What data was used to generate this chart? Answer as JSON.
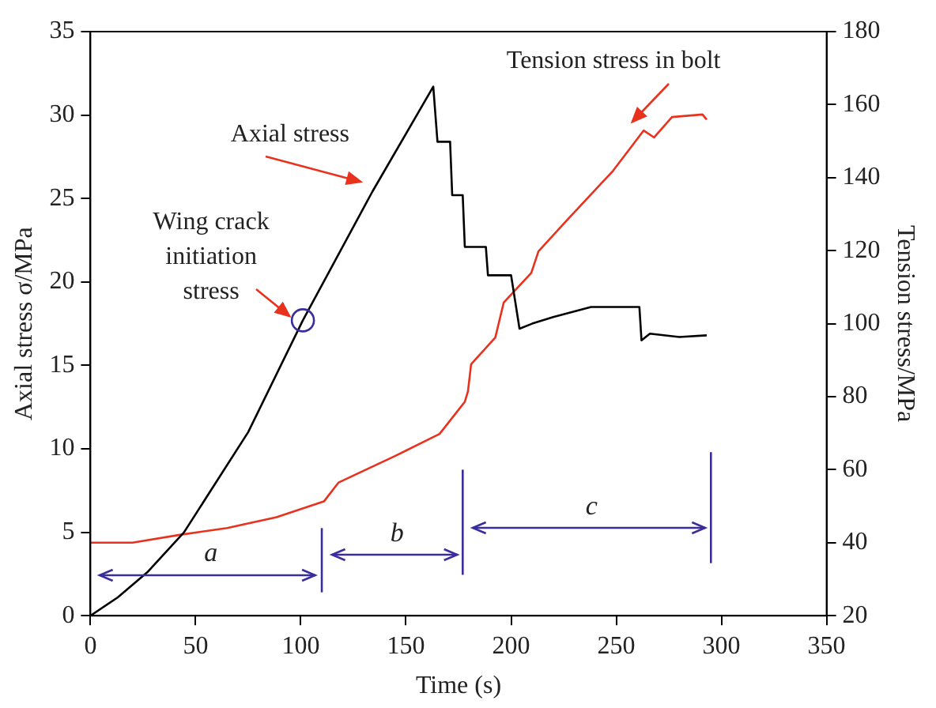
{
  "chart_data": {
    "type": "line",
    "xlabel": "Time (s)",
    "ylabel": "Axial stress σ/MPa",
    "y2label": "Tension stress/MPa",
    "xlim": [
      0,
      350
    ],
    "xticks": [
      0,
      50,
      100,
      150,
      200,
      250,
      300,
      350
    ],
    "ylim": [
      0,
      35
    ],
    "yticks": [
      0,
      5,
      10,
      15,
      20,
      25,
      30,
      35
    ],
    "y2lim": [
      20,
      180
    ],
    "y2ticks": [
      20,
      40,
      60,
      80,
      100,
      120,
      140,
      160,
      180
    ],
    "marker": "none",
    "line_style": "solid",
    "series": [
      {
        "name": "Axial stress",
        "color": "#000000",
        "x": [
          0,
          13,
          27,
          44.5,
          75,
          101,
          134,
          163,
          165,
          171,
          172,
          177,
          178,
          188,
          189,
          200,
          204,
          210,
          220,
          238,
          261,
          262,
          266,
          280,
          293
        ],
        "values": [
          0,
          1.1,
          2.6,
          5.0,
          11.0,
          17.7,
          25.4,
          31.7,
          28.4,
          28.4,
          25.2,
          25.2,
          22.1,
          22.1,
          20.4,
          20.4,
          17.2,
          17.5,
          17.9,
          18.5,
          18.5,
          16.5,
          16.9,
          16.7,
          16.8
        ]
      },
      {
        "name": "Tension stress in bolt",
        "color": "#e8321e",
        "axis": "y2",
        "x": [
          0,
          20,
          43,
          65,
          88.5,
          111,
          118,
          145,
          166,
          178,
          179.5,
          181,
          192.5,
          196.5,
          209.6,
          213,
          227,
          248.5,
          263,
          268,
          276.5,
          291,
          293
        ],
        "values": [
          40,
          40,
          42.2,
          44,
          47,
          51.3,
          56.5,
          63.8,
          69.8,
          78.6,
          81.5,
          88.9,
          96.2,
          105.8,
          113.9,
          119.8,
          128.6,
          141.9,
          152.9,
          151,
          156.6,
          157.3,
          155.9
        ]
      }
    ],
    "annotations": [
      {
        "text": "Wing crack initiation stress",
        "x": 101,
        "y": 17.7
      },
      "a",
      "b",
      "c"
    ],
    "ref_lines": [
      {
        "axis": "x",
        "value": 110,
        "color": "#3a2d9c",
        "line_style": "solid"
      },
      {
        "axis": "x",
        "value": 177,
        "color": "#3a2d9c",
        "line_style": "solid"
      },
      {
        "axis": "x",
        "value": 295,
        "color": "#3a2d9c",
        "line_style": "solid"
      }
    ]
  }
}
